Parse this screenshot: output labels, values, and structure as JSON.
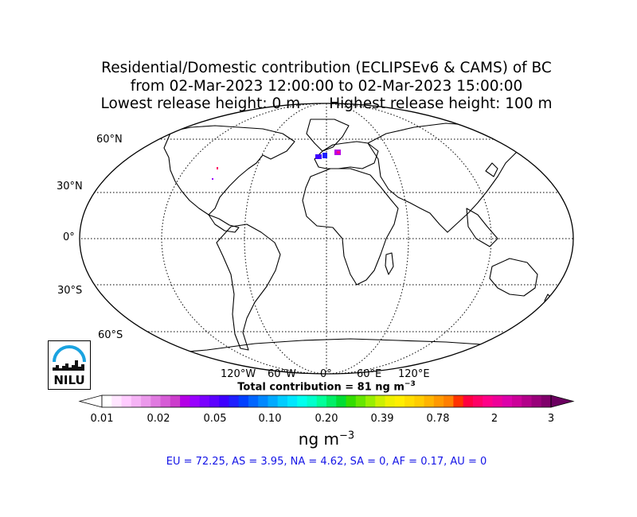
{
  "title": {
    "line1": "Residential/Domestic contribution (ECLIPSEv6 & CAMS) of BC",
    "line2": "from 02-Mar-2023 12:00:00 to 02-Mar-2023 15:00:00",
    "lowest": "Lowest release height: 0 m",
    "highest": "Highest release height: 100 m"
  },
  "map": {
    "projection": "Robinson",
    "lat_labels": [
      "60°N",
      "30°N",
      "0°",
      "30°S",
      "60°S"
    ],
    "lon_labels": [
      "120°W",
      "60°W",
      "0°",
      "60°E",
      "120°E"
    ],
    "gridlines": true
  },
  "total": {
    "label": "Total contribution = 81 ng m",
    "exp": "−3"
  },
  "colorbar": {
    "tick_labels": [
      "0.01",
      "0.02",
      "0.05",
      "0.10",
      "0.20",
      "0.39",
      "0.78",
      "2",
      "3"
    ],
    "unit": "ng m",
    "unit_exp": "−3",
    "colors": [
      "#ffffff",
      "#ffe6ff",
      "#ffccff",
      "#f5b3f5",
      "#eb99eb",
      "#e07ae0",
      "#d65cd6",
      "#cc3dcc",
      "#b400e6",
      "#9900ff",
      "#7a00ff",
      "#5c00ff",
      "#3d00ff",
      "#1f1fff",
      "#0040ff",
      "#0066ff",
      "#0088ff",
      "#00aaff",
      "#00ccff",
      "#00e6ff",
      "#00ffee",
      "#00ffcc",
      "#00ff99",
      "#00ee66",
      "#00dd33",
      "#33dd00",
      "#66e600",
      "#99ee00",
      "#ccf000",
      "#eef000",
      "#ffee00",
      "#ffdd00",
      "#ffcc00",
      "#ffb400",
      "#ff9900",
      "#ff7f00",
      "#ff3300",
      "#ff0040",
      "#ff0066",
      "#ff0088",
      "#ee0099",
      "#dd00aa",
      "#cc0099",
      "#b3008a",
      "#99007a",
      "#80006b"
    ],
    "under_color": "#ffffff",
    "over_color": "#6b0060"
  },
  "regions": "EU = 72.25,  AS = 3.95,  NA = 4.62,  SA = 0,  AF = 0.17,  AU = 0",
  "logo": {
    "text": "NILU",
    "color": "#1aa3e0"
  }
}
